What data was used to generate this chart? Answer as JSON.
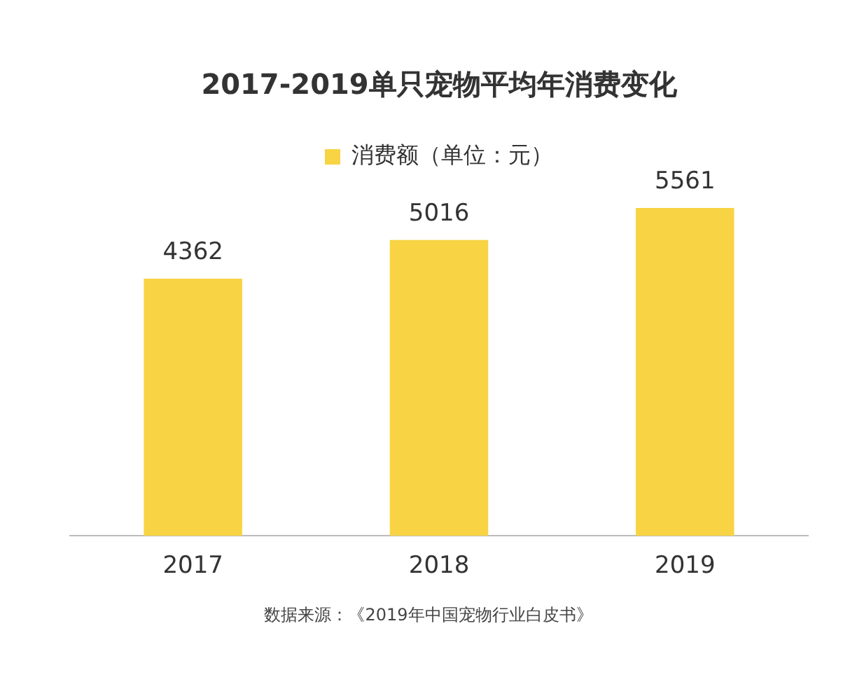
{
  "chart_data": {
    "type": "bar",
    "title": "2017-2019单只宠物平均年消费变化",
    "categories": [
      "2017",
      "2018",
      "2019"
    ],
    "series": [
      {
        "name": "消费额（单位：元）",
        "color": "#f8d444",
        "values": [
          4362,
          5016,
          5561
        ]
      }
    ],
    "data_labels": true,
    "legend": "top",
    "grid": false,
    "annotations": [
      "数据来源：《2019年中国宠物行业白皮书》"
    ]
  }
}
